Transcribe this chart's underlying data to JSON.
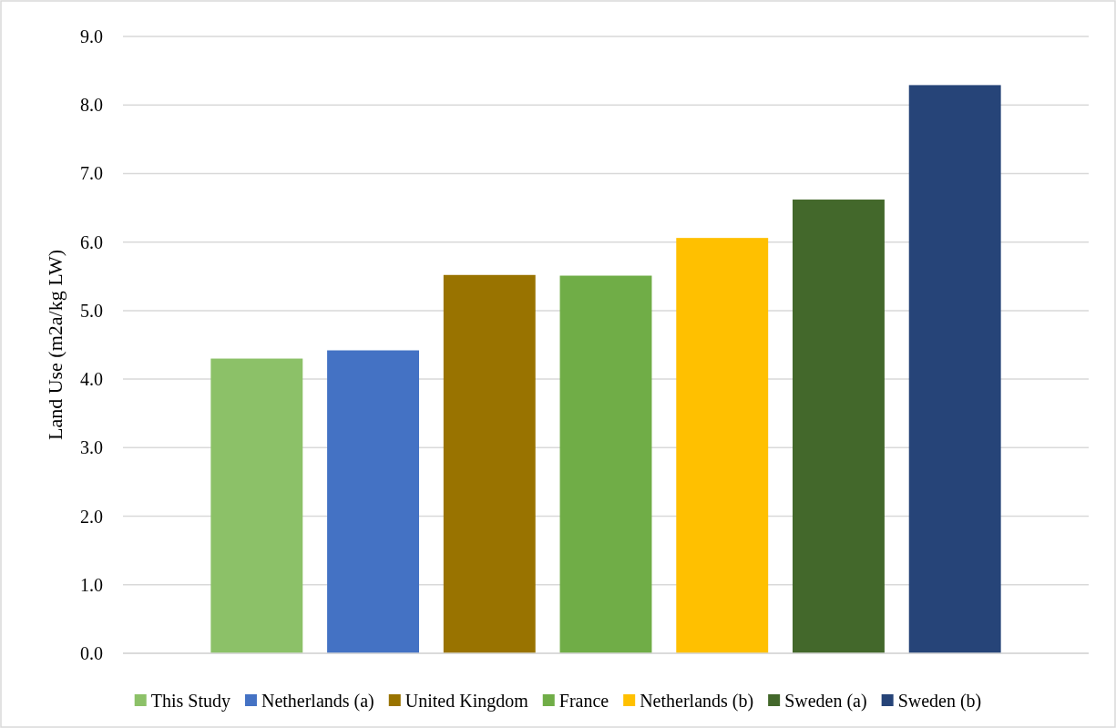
{
  "chart_data": {
    "type": "bar",
    "ylabel": "Land Use (m2a/kg LW)",
    "categories": [
      null
    ],
    "series": [
      {
        "name": "This Study",
        "color": "#8cc168",
        "values": [
          4.3
        ]
      },
      {
        "name": "Netherlands (a)",
        "color": "#4472c4",
        "values": [
          4.42
        ]
      },
      {
        "name": "United Kingdom",
        "color": "#997300",
        "values": [
          5.52
        ]
      },
      {
        "name": "France",
        "color": "#70ad47",
        "values": [
          5.51
        ]
      },
      {
        "name": "Netherlands (b)",
        "color": "#ffc000",
        "values": [
          6.06
        ]
      },
      {
        "name": "Sweden (a)",
        "color": "#43682b",
        "values": [
          6.62
        ]
      },
      {
        "name": "Sweden (b)",
        "color": "#264478",
        "values": [
          8.29
        ]
      }
    ],
    "ylim": [
      0,
      9
    ],
    "yticks": [
      {
        "value": 0,
        "label": "0.0"
      },
      {
        "value": 1,
        "label": "1.0"
      },
      {
        "value": 2,
        "label": "2.0"
      },
      {
        "value": 3,
        "label": "3.0"
      },
      {
        "value": 4,
        "label": "4.0"
      },
      {
        "value": 5,
        "label": "5.0"
      },
      {
        "value": 6,
        "label": "6.0"
      },
      {
        "value": 7,
        "label": "7.0"
      },
      {
        "value": 8,
        "label": "8.0"
      },
      {
        "value": 9,
        "label": "9.0"
      }
    ],
    "grid": "y",
    "legend": "bottom"
  }
}
